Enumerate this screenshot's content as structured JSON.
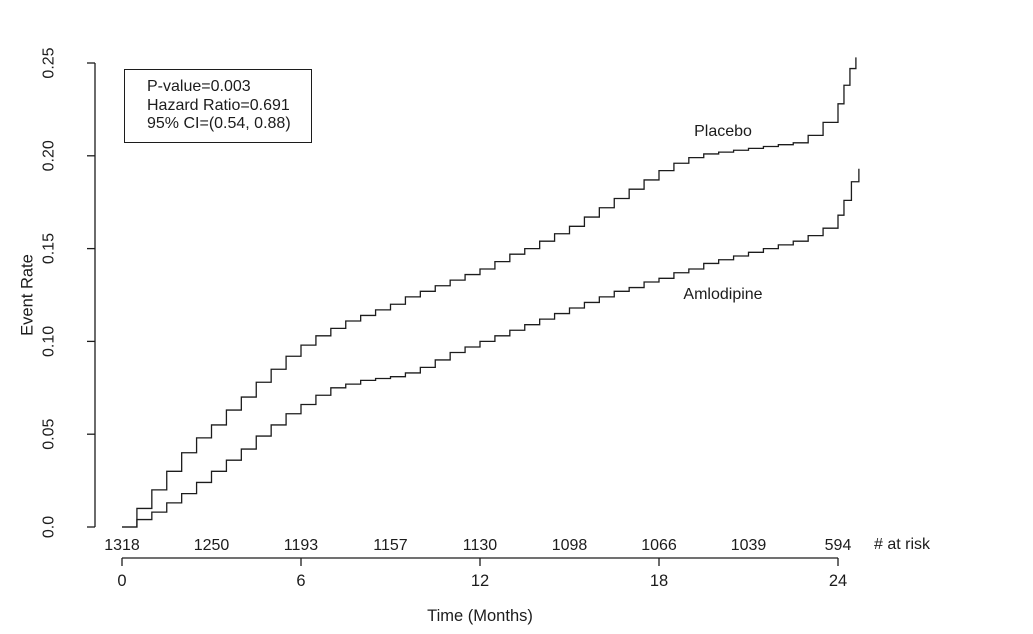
{
  "chart_data": {
    "type": "line",
    "subtype": "kaplan-meier-step",
    "title": "",
    "xlabel": "Time (Months)",
    "ylabel": "Event Rate",
    "xlim": [
      0,
      25
    ],
    "ylim": [
      0,
      0.25
    ],
    "grid": false,
    "ink_color": "#1c1c1c",
    "x_ticks": [
      0,
      6,
      12,
      18,
      24
    ],
    "x_tick_labels": [
      "0",
      "6",
      "12",
      "18",
      "24"
    ],
    "y_ticks": [
      0,
      0.05,
      0.1,
      0.15,
      0.2,
      0.25
    ],
    "y_tick_labels": [
      "0.0",
      "0.05",
      "0.10",
      "0.15",
      "0.20",
      "0.25"
    ],
    "annotation": {
      "lines": [
        "P-value=0.003",
        "Hazard Ratio=0.691",
        "95% CI=(0.54, 0.88)"
      ]
    },
    "series": [
      {
        "name": "Placebo",
        "label_pos": {
          "x": 20.1,
          "y": 0.213
        },
        "points": [
          [
            0,
            0
          ],
          [
            0.5,
            0.01
          ],
          [
            1,
            0.02
          ],
          [
            1.5,
            0.03
          ],
          [
            2,
            0.04
          ],
          [
            2.5,
            0.048
          ],
          [
            3,
            0.055
          ],
          [
            3.5,
            0.063
          ],
          [
            4,
            0.07
          ],
          [
            4.5,
            0.078
          ],
          [
            5,
            0.085
          ],
          [
            5.5,
            0.092
          ],
          [
            6,
            0.098
          ],
          [
            6.5,
            0.103
          ],
          [
            7,
            0.107
          ],
          [
            7.5,
            0.111
          ],
          [
            8,
            0.114
          ],
          [
            8.5,
            0.117
          ],
          [
            9,
            0.12
          ],
          [
            9.5,
            0.124
          ],
          [
            10,
            0.127
          ],
          [
            10.5,
            0.13
          ],
          [
            11,
            0.133
          ],
          [
            11.5,
            0.136
          ],
          [
            12,
            0.139
          ],
          [
            12.5,
            0.143
          ],
          [
            13,
            0.147
          ],
          [
            13.5,
            0.15
          ],
          [
            14,
            0.154
          ],
          [
            14.5,
            0.158
          ],
          [
            15,
            0.162
          ],
          [
            15.5,
            0.167
          ],
          [
            16,
            0.172
          ],
          [
            16.5,
            0.177
          ],
          [
            17,
            0.182
          ],
          [
            17.5,
            0.187
          ],
          [
            18,
            0.192
          ],
          [
            18.5,
            0.196
          ],
          [
            19,
            0.199
          ],
          [
            19.5,
            0.201
          ],
          [
            20,
            0.202
          ],
          [
            20.5,
            0.203
          ],
          [
            21,
            0.204
          ],
          [
            21.5,
            0.205
          ],
          [
            22,
            0.206
          ],
          [
            22.5,
            0.207
          ],
          [
            23,
            0.211
          ],
          [
            23.5,
            0.218
          ],
          [
            24,
            0.228
          ],
          [
            24.2,
            0.238
          ],
          [
            24.4,
            0.247
          ],
          [
            24.6,
            0.253
          ]
        ]
      },
      {
        "name": "Amlodipine",
        "label_pos": {
          "x": 20.1,
          "y": 0.125
        },
        "points": [
          [
            0,
            0
          ],
          [
            0.5,
            0.004
          ],
          [
            1,
            0.008
          ],
          [
            1.5,
            0.013
          ],
          [
            2,
            0.018
          ],
          [
            2.5,
            0.024
          ],
          [
            3,
            0.03
          ],
          [
            3.5,
            0.036
          ],
          [
            4,
            0.042
          ],
          [
            4.5,
            0.049
          ],
          [
            5,
            0.055
          ],
          [
            5.5,
            0.061
          ],
          [
            6,
            0.066
          ],
          [
            6.5,
            0.071
          ],
          [
            7,
            0.075
          ],
          [
            7.5,
            0.077
          ],
          [
            8,
            0.079
          ],
          [
            8.5,
            0.08
          ],
          [
            9,
            0.081
          ],
          [
            9.5,
            0.083
          ],
          [
            10,
            0.086
          ],
          [
            10.5,
            0.09
          ],
          [
            11,
            0.094
          ],
          [
            11.5,
            0.097
          ],
          [
            12,
            0.1
          ],
          [
            12.5,
            0.103
          ],
          [
            13,
            0.106
          ],
          [
            13.5,
            0.109
          ],
          [
            14,
            0.112
          ],
          [
            14.5,
            0.115
          ],
          [
            15,
            0.118
          ],
          [
            15.5,
            0.121
          ],
          [
            16,
            0.124
          ],
          [
            16.5,
            0.127
          ],
          [
            17,
            0.129
          ],
          [
            17.5,
            0.132
          ],
          [
            18,
            0.134
          ],
          [
            18.5,
            0.137
          ],
          [
            19,
            0.139
          ],
          [
            19.5,
            0.142
          ],
          [
            20,
            0.144
          ],
          [
            20.5,
            0.146
          ],
          [
            21,
            0.148
          ],
          [
            21.5,
            0.15
          ],
          [
            22,
            0.152
          ],
          [
            22.5,
            0.154
          ],
          [
            23,
            0.157
          ],
          [
            23.5,
            0.161
          ],
          [
            24,
            0.168
          ],
          [
            24.2,
            0.176
          ],
          [
            24.45,
            0.186
          ],
          [
            24.7,
            0.193
          ]
        ]
      }
    ],
    "risk_table": {
      "label": "# at risk",
      "months": [
        0,
        3,
        6,
        9,
        12,
        15,
        18,
        21,
        24
      ],
      "counts": [
        "1318",
        "1250",
        "1193",
        "1157",
        "1130",
        "1098",
        "1066",
        "1039",
        "594"
      ]
    }
  }
}
